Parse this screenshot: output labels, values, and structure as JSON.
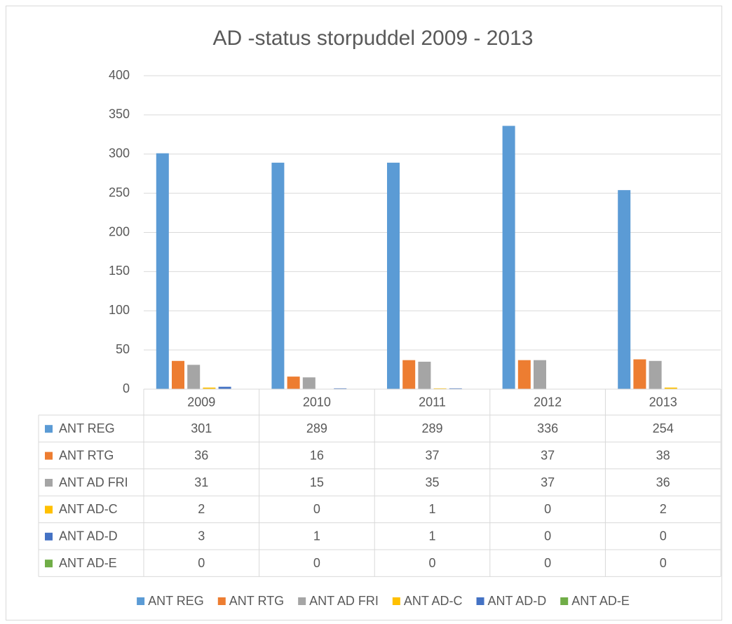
{
  "chart_data": {
    "type": "bar",
    "title": "AD -status storpuddel 2009 - 2013",
    "categories": [
      "2009",
      "2010",
      "2011",
      "2012",
      "2013"
    ],
    "series": [
      {
        "name": "ANT REG",
        "color": "#5b9bd5",
        "values": [
          301,
          289,
          289,
          336,
          254
        ]
      },
      {
        "name": "ANT RTG",
        "color": "#ed7d31",
        "values": [
          36,
          16,
          37,
          37,
          38
        ]
      },
      {
        "name": "ANT AD FRI",
        "color": "#a5a5a5",
        "values": [
          31,
          15,
          35,
          37,
          36
        ]
      },
      {
        "name": "ANT AD-C",
        "color": "#ffc000",
        "values": [
          2,
          0,
          1,
          0,
          2
        ]
      },
      {
        "name": "ANT AD-D",
        "color": "#4472c4",
        "values": [
          3,
          1,
          1,
          0,
          0
        ]
      },
      {
        "name": "ANT AD-E",
        "color": "#70ad47",
        "values": [
          0,
          0,
          0,
          0,
          0
        ]
      }
    ],
    "ylim": [
      0,
      400
    ],
    "yticks": [
      0,
      50,
      100,
      150,
      200,
      250,
      300,
      350,
      400
    ],
    "grid": true,
    "data_table": true,
    "legend": "bottom"
  }
}
